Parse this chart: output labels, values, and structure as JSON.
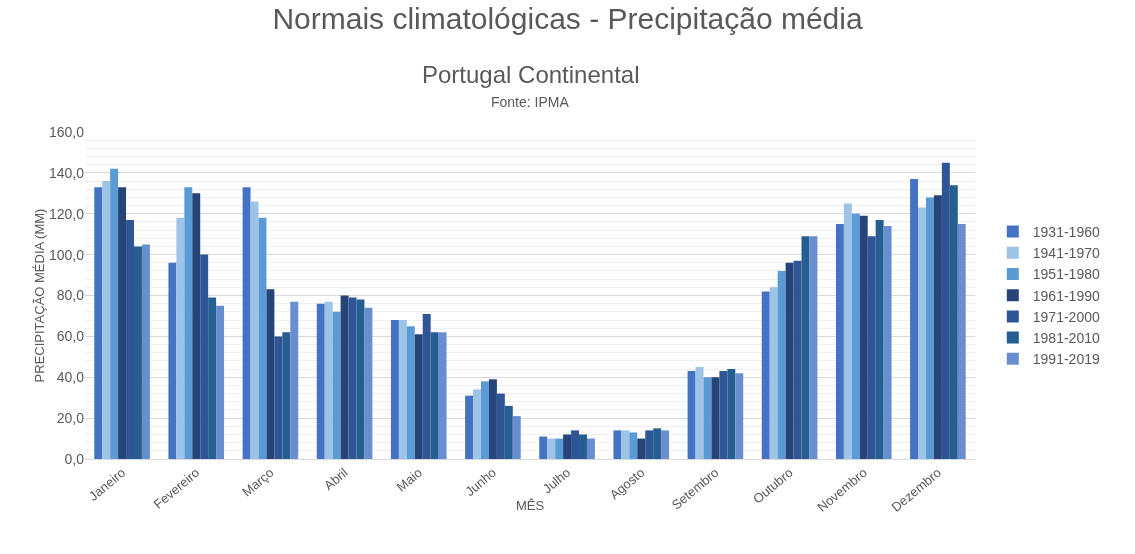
{
  "chart_data": {
    "type": "bar",
    "title": "Normais climatológicas - Precipitação média",
    "subtitle": "Portugal Continental",
    "annotations": [
      "Fonte: IPMA"
    ],
    "xlabel": "MÊS",
    "ylabel": "PRECIPITAÇÃO MÉDIA (MM)",
    "categories": [
      "Janeiro",
      "Fevereiro",
      "Março",
      "Abril",
      "Maio",
      "Junho",
      "Julho",
      "Agosto",
      "Setembro",
      "Outubro",
      "Novembro",
      "Dezembro"
    ],
    "series": [
      {
        "name": "1931-1960",
        "color": "#4472c4",
        "values": [
          133,
          96,
          133,
          76,
          68,
          31,
          11,
          14,
          43,
          82,
          115,
          137
        ]
      },
      {
        "name": "1941-1970",
        "color": "#9dc3e6",
        "values": [
          136,
          118,
          126,
          77,
          68,
          34,
          10,
          14,
          45,
          84,
          125,
          123
        ]
      },
      {
        "name": "1951-1980",
        "color": "#5b9bd5",
        "values": [
          142,
          133,
          118,
          72,
          65,
          38,
          10,
          13,
          40,
          92,
          120,
          128
        ]
      },
      {
        "name": "1961-1990",
        "color": "#264478",
        "values": [
          133,
          130,
          83,
          80,
          61,
          39,
          12,
          10,
          40,
          96,
          119,
          129
        ]
      },
      {
        "name": "1971-2000",
        "color": "#2f5597",
        "values": [
          117,
          100,
          60,
          79,
          71,
          32,
          14,
          14,
          43,
          97,
          109,
          145
        ]
      },
      {
        "name": "1981-2010",
        "color": "#255e91",
        "values": [
          104,
          79,
          62,
          78,
          62,
          26,
          12,
          15,
          44,
          109,
          117,
          134
        ]
      },
      {
        "name": "1991-2019",
        "color": "#698ed0",
        "values": [
          105,
          75,
          77,
          74,
          62,
          21,
          10,
          14,
          42,
          109,
          114,
          115
        ]
      }
    ],
    "ylim": [
      0,
      160
    ],
    "yticks": [
      {
        "value": 0,
        "label": "0,0"
      },
      {
        "value": 20,
        "label": "20,0"
      },
      {
        "value": 40,
        "label": "40,0"
      },
      {
        "value": 60,
        "label": "60,0"
      },
      {
        "value": 80,
        "label": "80,0"
      },
      {
        "value": 100,
        "label": "100,0"
      },
      {
        "value": 120,
        "label": "120,0"
      },
      {
        "value": 140,
        "label": "140,0"
      },
      {
        "value": 160,
        "label": "160,0"
      }
    ],
    "grid": "y",
    "legend": "right"
  }
}
